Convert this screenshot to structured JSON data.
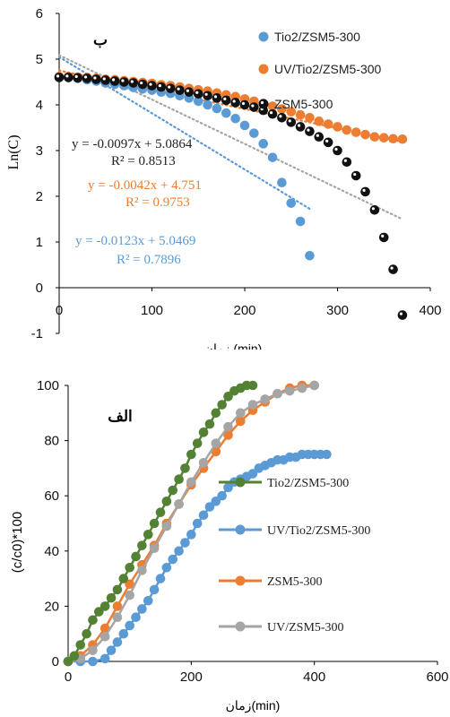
{
  "chart_data": [
    {
      "type": "scatter",
      "panel_label": "ب",
      "xlabel": "زمان (min)",
      "ylabel": "Ln(C)",
      "xlim": [
        0,
        400
      ],
      "ylim": [
        -1,
        6
      ],
      "xticks": [
        "0",
        "100",
        "200",
        "300",
        "400"
      ],
      "yticks": [
        "-1",
        "0",
        "1",
        "2",
        "3",
        "4",
        "5",
        "6"
      ],
      "grid": false,
      "legend_position": "top-right",
      "series": [
        {
          "name": "Tio2/ZSM5-300",
          "color": "#5b9bd5",
          "x": [
            0,
            10,
            20,
            30,
            40,
            50,
            60,
            70,
            80,
            90,
            100,
            110,
            120,
            130,
            140,
            150,
            160,
            170,
            180,
            190,
            200,
            210,
            220,
            230,
            240,
            250,
            260,
            270
          ],
          "y": [
            4.6,
            4.6,
            4.58,
            4.55,
            4.52,
            4.48,
            4.45,
            4.42,
            4.38,
            4.35,
            4.32,
            4.28,
            4.25,
            4.2,
            4.15,
            4.08,
            4.0,
            3.92,
            3.82,
            3.7,
            3.55,
            3.38,
            3.15,
            2.85,
            2.3,
            1.85,
            1.45,
            0.7
          ]
        },
        {
          "name": "UV/Tio2/ZSM5-300",
          "color": "#ed7d31",
          "x": [
            0,
            10,
            20,
            30,
            40,
            50,
            60,
            70,
            80,
            90,
            100,
            110,
            120,
            130,
            140,
            150,
            160,
            170,
            180,
            190,
            200,
            210,
            220,
            230,
            240,
            250,
            260,
            270,
            280,
            290,
            300,
            310,
            320,
            330,
            340,
            350,
            360,
            370
          ],
          "y": [
            4.62,
            4.62,
            4.61,
            4.6,
            4.58,
            4.56,
            4.55,
            4.53,
            4.51,
            4.49,
            4.47,
            4.44,
            4.42,
            4.39,
            4.36,
            4.33,
            4.3,
            4.26,
            4.22,
            4.18,
            4.13,
            4.08,
            4.03,
            3.97,
            3.91,
            3.85,
            3.78,
            3.72,
            3.64,
            3.58,
            3.52,
            3.45,
            3.4,
            3.35,
            3.3,
            3.28,
            3.26,
            3.25
          ]
        },
        {
          "name": "ZSM5-300",
          "color": "#111111",
          "x": [
            0,
            10,
            20,
            30,
            40,
            50,
            60,
            70,
            80,
            90,
            100,
            110,
            120,
            130,
            140,
            150,
            160,
            170,
            180,
            190,
            200,
            210,
            220,
            230,
            240,
            250,
            260,
            270,
            280,
            290,
            300,
            310,
            320,
            330,
            340,
            350,
            360,
            370
          ],
          "y": [
            4.6,
            4.6,
            4.59,
            4.58,
            4.56,
            4.54,
            4.52,
            4.5,
            4.48,
            4.45,
            4.42,
            4.39,
            4.36,
            4.32,
            4.28,
            4.24,
            4.2,
            4.15,
            4.1,
            4.05,
            4.0,
            3.95,
            3.88,
            3.8,
            3.72,
            3.62,
            3.52,
            3.42,
            3.3,
            3.18,
            3.0,
            2.75,
            2.45,
            2.1,
            1.7,
            1.1,
            0.4,
            -0.6
          ]
        }
      ],
      "trendlines": [
        {
          "series": "Tio2/ZSM5-300",
          "slope": -0.0123,
          "intercept": 5.0469,
          "x_range": [
            0,
            270
          ],
          "equation": "y = -0.0123x + 5.0469",
          "r2": "R² = 0.7896"
        },
        {
          "series": "UV/Tio2/ZSM5-300",
          "slope": -0.0042,
          "intercept": 4.751,
          "x_range": [
            0,
            370
          ],
          "equation": "y = -0.0042x + 4.751",
          "r2": "R² = 0.9753"
        },
        {
          "series": "ZSM5-300",
          "slope": -0.0097,
          "intercept": 5.0864,
          "x_range": [
            0,
            370
          ],
          "equation": "y = -0.0097x + 5.0864",
          "r2": "R² = 0.8513"
        }
      ]
    },
    {
      "type": "line",
      "panel_label": "الف",
      "xlabel": "زمان(min)",
      "ylabel": "(c/c0)*100",
      "xlim": [
        0,
        600
      ],
      "ylim": [
        0,
        100
      ],
      "xticks": [
        "0",
        "200",
        "400",
        "600"
      ],
      "yticks": [
        "0",
        "20",
        "40",
        "60",
        "80",
        "100"
      ],
      "grid": false,
      "legend_position": "right",
      "series": [
        {
          "name": "Tio2/ZSM5-300",
          "color": "#548235",
          "x": [
            0,
            10,
            20,
            30,
            40,
            50,
            60,
            70,
            80,
            90,
            100,
            110,
            120,
            130,
            140,
            150,
            160,
            170,
            180,
            190,
            200,
            210,
            220,
            230,
            240,
            250,
            260,
            270,
            280,
            290,
            300
          ],
          "y": [
            0,
            2,
            6,
            10,
            15,
            18,
            20,
            23,
            26,
            30,
            34,
            38,
            42,
            46,
            50,
            54,
            58,
            62,
            66,
            70,
            75,
            79,
            83,
            86,
            90,
            93,
            96,
            98,
            99,
            100,
            100
          ]
        },
        {
          "name": "UV/Tio2/ZSM5-300",
          "color": "#5b9bd5",
          "x": [
            0,
            20,
            40,
            60,
            70,
            80,
            90,
            100,
            110,
            120,
            130,
            140,
            150,
            160,
            170,
            180,
            190,
            200,
            210,
            220,
            230,
            240,
            250,
            260,
            270,
            280,
            290,
            300,
            310,
            320,
            330,
            340,
            350,
            360,
            370,
            380,
            390,
            400,
            410,
            420
          ],
          "y": [
            0,
            0,
            0,
            1,
            4,
            7,
            10,
            13,
            16,
            19,
            22,
            26,
            30,
            34,
            37,
            40,
            43,
            46,
            50,
            53,
            56,
            58,
            60,
            63,
            65,
            66,
            67,
            68,
            70,
            71,
            72,
            73,
            73,
            74,
            74,
            75,
            75,
            75,
            75,
            75
          ]
        },
        {
          "name": "ZSM5-300",
          "color": "#ed7d31",
          "x": [
            0,
            20,
            40,
            60,
            80,
            100,
            120,
            140,
            160,
            180,
            200,
            220,
            240,
            260,
            280,
            300,
            320,
            340,
            360,
            380,
            400
          ],
          "y": [
            0,
            2,
            6,
            12,
            20,
            28,
            35,
            42,
            50,
            57,
            64,
            70,
            76,
            82,
            87,
            91,
            94,
            97,
            99,
            100,
            100
          ]
        },
        {
          "name": "UV/ZSM5-300",
          "color": "#a5a5a5",
          "x": [
            0,
            20,
            40,
            60,
            80,
            100,
            120,
            140,
            160,
            180,
            200,
            220,
            240,
            260,
            280,
            300,
            320,
            340,
            360,
            380,
            400
          ],
          "y": [
            0,
            1,
            4,
            9,
            16,
            24,
            33,
            41,
            49,
            57,
            65,
            72,
            79,
            85,
            90,
            93,
            95,
            97,
            98,
            99,
            100
          ]
        }
      ]
    }
  ]
}
